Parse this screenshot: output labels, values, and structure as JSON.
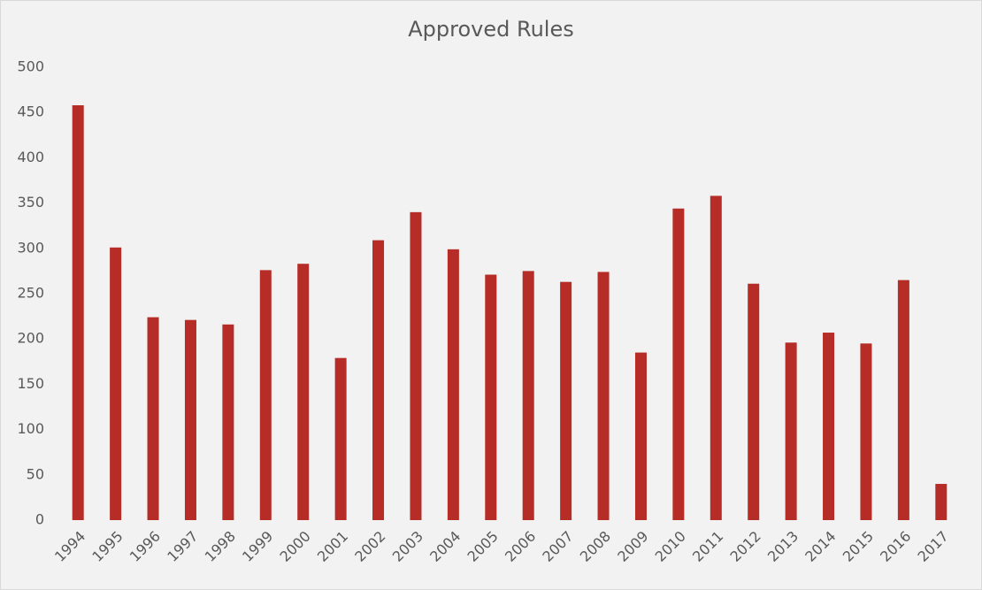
{
  "chart_data": {
    "type": "bar",
    "title": "Approved Rules",
    "categories": [
      "1994",
      "1995",
      "1996",
      "1997",
      "1998",
      "1999",
      "2000",
      "2001",
      "2002",
      "2003",
      "2004",
      "2005",
      "2006",
      "2007",
      "2008",
      "2009",
      "2010",
      "2011",
      "2012",
      "2013",
      "2014",
      "2015",
      "2016",
      "2017"
    ],
    "values": [
      458,
      301,
      224,
      221,
      216,
      276,
      283,
      179,
      309,
      340,
      299,
      271,
      275,
      263,
      274,
      185,
      344,
      358,
      261,
      196,
      207,
      195,
      265,
      40
    ],
    "color": "#b52d26",
    "ylim": [
      0,
      500
    ],
    "yticks": [
      0,
      50,
      100,
      150,
      200,
      250,
      300,
      350,
      400,
      450,
      500
    ],
    "grid": false
  }
}
